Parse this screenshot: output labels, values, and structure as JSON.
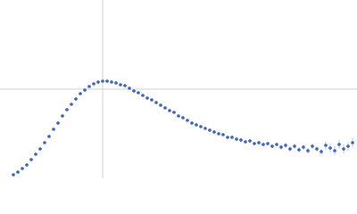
{
  "chart_data": {
    "type": "scatter",
    "x": [
      0.15,
      0.2,
      0.25,
      0.3,
      0.35,
      0.4,
      0.45,
      0.5,
      0.55,
      0.6,
      0.65,
      0.7,
      0.75,
      0.8,
      0.85,
      0.9,
      0.95,
      1.0,
      1.05,
      1.1,
      1.15,
      1.2,
      1.25,
      1.3,
      1.35,
      1.4,
      1.45,
      1.5,
      1.55,
      1.6,
      1.65,
      1.7,
      1.75,
      1.8,
      1.85,
      1.9,
      1.95,
      2.0,
      2.05,
      2.1,
      2.15,
      2.2,
      2.25,
      2.3,
      2.35,
      2.4,
      2.45,
      2.5,
      2.55,
      2.6,
      2.65,
      2.7,
      2.75,
      2.8,
      2.85,
      2.9,
      2.95,
      3.0,
      3.05,
      3.1,
      3.15,
      3.2,
      3.25,
      3.3,
      3.35,
      3.4,
      3.45,
      3.5,
      3.55,
      3.6,
      3.65,
      3.7,
      3.75,
      3.8,
      3.85,
      3.9,
      3.95
    ],
    "series": [
      {
        "color": "#3a62b5",
        "values": [
          0.04,
          0.07,
          0.11,
          0.15,
          0.21,
          0.27,
          0.33,
          0.4,
          0.47,
          0.55,
          0.62,
          0.7,
          0.77,
          0.83,
          0.89,
          0.95,
          0.99,
          1.03,
          1.06,
          1.08,
          1.09,
          1.09,
          1.08,
          1.07,
          1.05,
          1.04,
          1.01,
          0.98,
          0.96,
          0.93,
          0.9,
          0.88,
          0.85,
          0.82,
          0.79,
          0.76,
          0.74,
          0.7,
          0.68,
          0.65,
          0.62,
          0.6,
          0.58,
          0.56,
          0.54,
          0.52,
          0.5,
          0.49,
          0.46,
          0.46,
          0.44,
          0.43,
          0.41,
          0.42,
          0.39,
          0.4,
          0.38,
          0.39,
          0.36,
          0.38,
          0.35,
          0.37,
          0.33,
          0.36,
          0.32,
          0.35,
          0.31,
          0.36,
          0.33,
          0.3,
          0.37,
          0.34,
          0.31,
          0.38,
          0.33,
          0.36,
          0.4
        ],
        "errors": [
          0.005,
          0.005,
          0.005,
          0.005,
          0.005,
          0.005,
          0.005,
          0.005,
          0.005,
          0.005,
          0.005,
          0.005,
          0.005,
          0.005,
          0.005,
          0.005,
          0.005,
          0.005,
          0.005,
          0.005,
          0.005,
          0.005,
          0.005,
          0.005,
          0.005,
          0.005,
          0.005,
          0.005,
          0.005,
          0.005,
          0.01,
          0.01,
          0.01,
          0.01,
          0.01,
          0.01,
          0.01,
          0.01,
          0.01,
          0.01,
          0.01,
          0.01,
          0.01,
          0.01,
          0.01,
          0.01,
          0.01,
          0.01,
          0.01,
          0.01,
          0.02,
          0.02,
          0.02,
          0.02,
          0.02,
          0.02,
          0.02,
          0.02,
          0.02,
          0.02,
          0.03,
          0.03,
          0.03,
          0.03,
          0.03,
          0.03,
          0.03,
          0.03,
          0.03,
          0.03,
          0.05,
          0.05,
          0.05,
          0.05,
          0.05,
          0.05,
          0.05
        ]
      }
    ],
    "xlim": [
      0,
      4
    ],
    "ylim": [
      0,
      2
    ],
    "xticks": [
      1.15
    ],
    "yticks": [
      1
    ],
    "grid": true
  }
}
